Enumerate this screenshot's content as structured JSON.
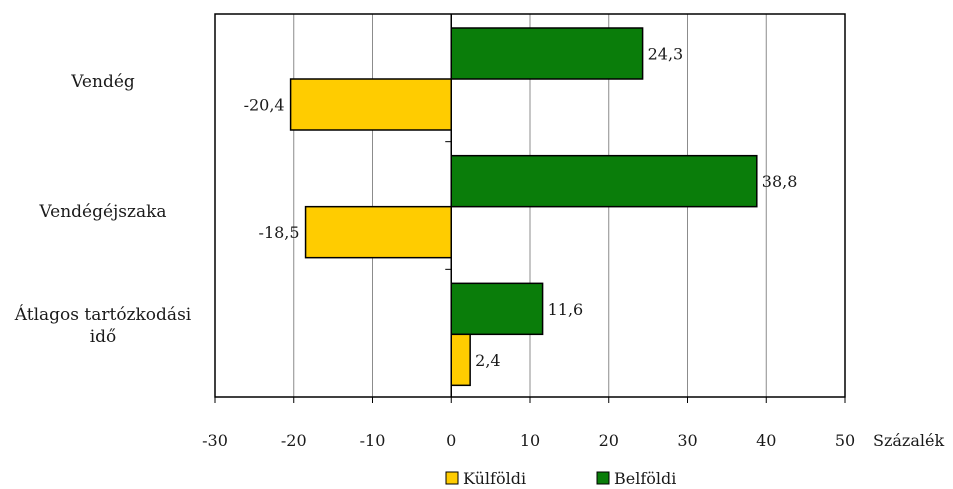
{
  "chart_data": {
    "type": "bar",
    "orientation": "horizontal",
    "categories": [
      "Vendég",
      "Vendégéjszaka",
      "Átlagos tartózkodási idő"
    ],
    "category_lines": [
      [
        "Vendég"
      ],
      [
        "Vendégéjszaka"
      ],
      [
        "Átlagos tartózkodási",
        "idő"
      ]
    ],
    "series": [
      {
        "name": "Belföldi",
        "color": "#0a7d0a",
        "values": [
          24.3,
          38.8,
          11.6
        ],
        "labels": [
          "24,3",
          "38,8",
          "11,6"
        ]
      },
      {
        "name": "Külföldi",
        "color": "#ffcc00",
        "values": [
          -20.4,
          -18.5,
          2.4
        ],
        "labels": [
          "-20,4",
          "-18,5",
          "2,4"
        ]
      }
    ],
    "x_ticks": [
      "-30",
      "-20",
      "-10",
      "0",
      "10",
      "20",
      "30",
      "40",
      "50"
    ],
    "xlim": [
      -30,
      50
    ],
    "x_unit_label": "Százalék",
    "grid": "vertical",
    "legend": {
      "placement": "bottom",
      "items": [
        {
          "name": "Külföldi",
          "color": "#ffcc00"
        },
        {
          "name": "Belföldi",
          "color": "#0a7d0a"
        }
      ]
    }
  }
}
